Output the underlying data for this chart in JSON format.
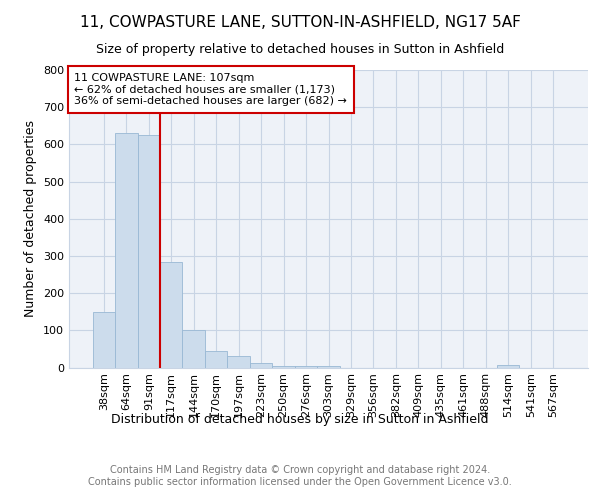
{
  "title1": "11, COWPASTURE LANE, SUTTON-IN-ASHFIELD, NG17 5AF",
  "title2": "Size of property relative to detached houses in Sutton in Ashfield",
  "xlabel": "Distribution of detached houses by size in Sutton in Ashfield",
  "ylabel": "Number of detached properties",
  "footer": "Contains HM Land Registry data © Crown copyright and database right 2024.\nContains public sector information licensed under the Open Government Licence v3.0.",
  "bar_labels": [
    "38sqm",
    "64sqm",
    "91sqm",
    "117sqm",
    "144sqm",
    "170sqm",
    "197sqm",
    "223sqm",
    "250sqm",
    "276sqm",
    "303sqm",
    "329sqm",
    "356sqm",
    "382sqm",
    "409sqm",
    "435sqm",
    "461sqm",
    "488sqm",
    "514sqm",
    "541sqm",
    "567sqm"
  ],
  "bar_values": [
    150,
    630,
    625,
    285,
    100,
    45,
    30,
    12,
    5,
    5,
    5,
    0,
    0,
    0,
    0,
    0,
    0,
    0,
    8,
    0,
    0
  ],
  "bar_color": "#ccdcec",
  "bar_edgecolor": "#99b8d4",
  "vline_color": "#cc0000",
  "vline_x": 2.5,
  "annotation_text": "11 COWPASTURE LANE: 107sqm\n← 62% of detached houses are smaller (1,173)\n36% of semi-detached houses are larger (682) →",
  "annotation_box_edgecolor": "#cc0000",
  "ylim": [
    0,
    800
  ],
  "yticks": [
    0,
    100,
    200,
    300,
    400,
    500,
    600,
    700,
    800
  ],
  "bg_color": "#eef2f8",
  "grid_color": "#c8d4e4",
  "title1_fontsize": 11,
  "title2_fontsize": 9,
  "ylabel_fontsize": 9,
  "xlabel_fontsize": 9,
  "tick_fontsize": 8,
  "ann_fontsize": 8,
  "footer_fontsize": 7
}
